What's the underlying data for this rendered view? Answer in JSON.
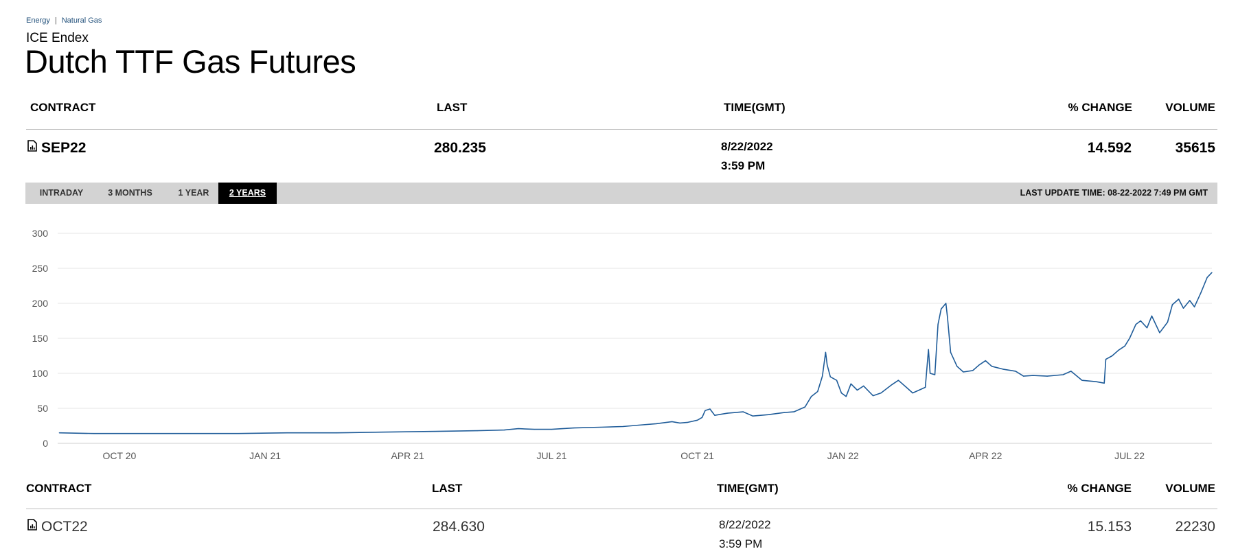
{
  "breadcrumb": [
    "Energy",
    "Natural Gas"
  ],
  "exchange": "ICE Endex",
  "title": "Dutch TTF Gas Futures",
  "table_headers": {
    "contract": "CONTRACT",
    "last": "LAST",
    "time": "TIME(GMT)",
    "change": "% CHANGE",
    "volume": "VOLUME"
  },
  "rows": [
    {
      "contract": "SEP22",
      "last": "280.235",
      "date": "8/22/2022",
      "time": "3:59 PM",
      "change": "14.592",
      "volume": "35615",
      "icon": "chart-document-icon"
    },
    {
      "contract": "OCT22",
      "last": "284.630",
      "date": "8/22/2022",
      "time": "3:59 PM",
      "change": "15.153",
      "volume": "22230",
      "icon": "chart-document-icon"
    }
  ],
  "tabs": [
    {
      "label": "INTRADAY",
      "active": false
    },
    {
      "label": "3 MONTHS",
      "active": false
    },
    {
      "label": "1 YEAR",
      "active": false
    },
    {
      "label": "2 YEARS",
      "active": true
    }
  ],
  "last_update": "LAST UPDATE TIME: 08-22-2022 7:49 PM GMT",
  "colors": {
    "line": "#1f5c99",
    "grid": "#e6e6e6",
    "tabbar": "#d3d3d3",
    "active_tab": "#000000"
  },
  "chart_data": {
    "type": "line",
    "title": "",
    "xlabel": "",
    "ylabel": "",
    "ylim": [
      0,
      300
    ],
    "yticks": [
      0,
      50,
      100,
      150,
      200,
      250,
      300
    ],
    "xlim": [
      "2020-08-23",
      "2022-08-22"
    ],
    "xticks": [
      {
        "date": "2020-10-01",
        "label": "OCT 20"
      },
      {
        "date": "2021-01-01",
        "label": "JAN 21"
      },
      {
        "date": "2021-04-01",
        "label": "APR 21"
      },
      {
        "date": "2021-07-01",
        "label": "JUL 21"
      },
      {
        "date": "2021-10-01",
        "label": "OCT 21"
      },
      {
        "date": "2022-01-01",
        "label": "JAN 22"
      },
      {
        "date": "2022-04-01",
        "label": "APR 22"
      },
      {
        "date": "2022-07-01",
        "label": "JUL 22"
      }
    ],
    "grid": true,
    "series": [
      {
        "points": [
          [
            "2020-08-24",
            15
          ],
          [
            "2020-09-15",
            14
          ],
          [
            "2020-10-15",
            14
          ],
          [
            "2020-11-15",
            14
          ],
          [
            "2020-12-15",
            14
          ],
          [
            "2021-01-15",
            15
          ],
          [
            "2021-02-15",
            15
          ],
          [
            "2021-03-15",
            16
          ],
          [
            "2021-04-15",
            17
          ],
          [
            "2021-05-15",
            18
          ],
          [
            "2021-06-01",
            19
          ],
          [
            "2021-06-10",
            21
          ],
          [
            "2021-06-20",
            20
          ],
          [
            "2021-07-01",
            20
          ],
          [
            "2021-07-15",
            22
          ],
          [
            "2021-08-01",
            23
          ],
          [
            "2021-08-15",
            24
          ],
          [
            "2021-08-25",
            26
          ],
          [
            "2021-09-05",
            28
          ],
          [
            "2021-09-15",
            31
          ],
          [
            "2021-09-20",
            29
          ],
          [
            "2021-09-25",
            30
          ],
          [
            "2021-10-01",
            33
          ],
          [
            "2021-10-04",
            37
          ],
          [
            "2021-10-06",
            47
          ],
          [
            "2021-10-09",
            49
          ],
          [
            "2021-10-12",
            40
          ],
          [
            "2021-10-20",
            43
          ],
          [
            "2021-10-30",
            45
          ],
          [
            "2021-11-05",
            39
          ],
          [
            "2021-11-15",
            41
          ],
          [
            "2021-11-25",
            44
          ],
          [
            "2021-12-01",
            45
          ],
          [
            "2021-12-08",
            52
          ],
          [
            "2021-12-12",
            67
          ],
          [
            "2021-12-16",
            74
          ],
          [
            "2021-12-19",
            96
          ],
          [
            "2021-12-21",
            130
          ],
          [
            "2021-12-22",
            112
          ],
          [
            "2021-12-24",
            95
          ],
          [
            "2021-12-28",
            90
          ],
          [
            "2021-12-31",
            72
          ],
          [
            "2022-01-03",
            67
          ],
          [
            "2022-01-06",
            85
          ],
          [
            "2022-01-10",
            76
          ],
          [
            "2022-01-14",
            82
          ],
          [
            "2022-01-20",
            68
          ],
          [
            "2022-01-25",
            72
          ],
          [
            "2022-02-01",
            84
          ],
          [
            "2022-02-05",
            90
          ],
          [
            "2022-02-10",
            80
          ],
          [
            "2022-02-14",
            72
          ],
          [
            "2022-02-18",
            76
          ],
          [
            "2022-02-22",
            80
          ],
          [
            "2022-02-24",
            134
          ],
          [
            "2022-02-25",
            100
          ],
          [
            "2022-02-28",
            98
          ],
          [
            "2022-03-02",
            170
          ],
          [
            "2022-03-04",
            192
          ],
          [
            "2022-03-07",
            200
          ],
          [
            "2022-03-08",
            180
          ],
          [
            "2022-03-10",
            130
          ],
          [
            "2022-03-14",
            110
          ],
          [
            "2022-03-18",
            102
          ],
          [
            "2022-03-24",
            104
          ],
          [
            "2022-03-28",
            112
          ],
          [
            "2022-04-01",
            118
          ],
          [
            "2022-04-05",
            110
          ],
          [
            "2022-04-12",
            106
          ],
          [
            "2022-04-20",
            103
          ],
          [
            "2022-04-25",
            96
          ],
          [
            "2022-05-01",
            97
          ],
          [
            "2022-05-10",
            96
          ],
          [
            "2022-05-20",
            98
          ],
          [
            "2022-05-25",
            103
          ],
          [
            "2022-06-01",
            90
          ],
          [
            "2022-06-10",
            88
          ],
          [
            "2022-06-15",
            86
          ],
          [
            "2022-06-16",
            120
          ],
          [
            "2022-06-20",
            125
          ],
          [
            "2022-06-24",
            133
          ],
          [
            "2022-06-28",
            139
          ],
          [
            "2022-07-01",
            150
          ],
          [
            "2022-07-05",
            170
          ],
          [
            "2022-07-08",
            175
          ],
          [
            "2022-07-12",
            165
          ],
          [
            "2022-07-15",
            182
          ],
          [
            "2022-07-20",
            158
          ],
          [
            "2022-07-25",
            173
          ],
          [
            "2022-07-28",
            198
          ],
          [
            "2022-08-01",
            206
          ],
          [
            "2022-08-04",
            193
          ],
          [
            "2022-08-08",
            204
          ],
          [
            "2022-08-11",
            195
          ],
          [
            "2022-08-15",
            215
          ],
          [
            "2022-08-17",
            226
          ],
          [
            "2022-08-19",
            237
          ],
          [
            "2022-08-22",
            244
          ]
        ]
      }
    ]
  }
}
